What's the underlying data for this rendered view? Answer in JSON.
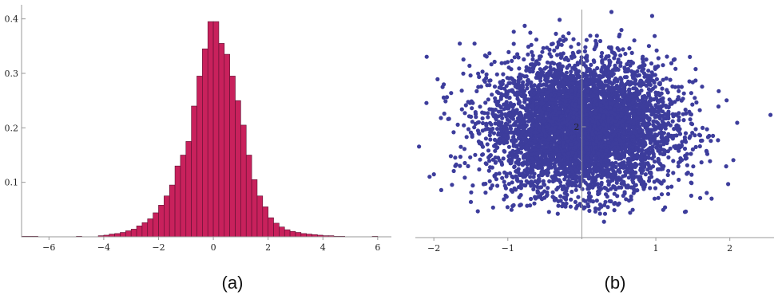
{
  "captions": {
    "a": "(a)",
    "b": "(b)"
  },
  "colors": {
    "bar_fill": "#c8215c",
    "bar_stroke": "#5a1030",
    "points": "#3d3d9c",
    "axis": "#999999"
  },
  "chart_data": [
    {
      "id": "a",
      "type": "bar",
      "title": "",
      "xlabel": "",
      "ylabel": "",
      "xlim": [
        -7,
        6.5
      ],
      "ylim": [
        0,
        0.42
      ],
      "bin_width": 0.2,
      "x_ticks": [
        -6,
        -4,
        -2,
        0,
        2,
        4,
        6
      ],
      "x_tick_labels": [
        "−6",
        "−4",
        "−2",
        "0",
        "2",
        "4",
        "6"
      ],
      "y_ticks": [
        0.1,
        0.2,
        0.3,
        0.4
      ],
      "y_tick_labels": [
        "0.1",
        "0.2",
        "0.3",
        "0.4"
      ],
      "bins": [
        {
          "x0": -7.0,
          "v": 0.001
        },
        {
          "x0": -6.8,
          "v": 0.001
        },
        {
          "x0": -6.6,
          "v": 0.001
        },
        {
          "x0": -5.0,
          "v": 0.001
        },
        {
          "x0": -4.2,
          "v": 0.002
        },
        {
          "x0": -4.0,
          "v": 0.003
        },
        {
          "x0": -3.8,
          "v": 0.005
        },
        {
          "x0": -3.6,
          "v": 0.006
        },
        {
          "x0": -3.4,
          "v": 0.008
        },
        {
          "x0": -3.2,
          "v": 0.011
        },
        {
          "x0": -3.0,
          "v": 0.014
        },
        {
          "x0": -2.8,
          "v": 0.02
        },
        {
          "x0": -2.6,
          "v": 0.026
        },
        {
          "x0": -2.4,
          "v": 0.033
        },
        {
          "x0": -2.2,
          "v": 0.044
        },
        {
          "x0": -2.0,
          "v": 0.058
        },
        {
          "x0": -1.8,
          "v": 0.075
        },
        {
          "x0": -1.6,
          "v": 0.095
        },
        {
          "x0": -1.4,
          "v": 0.13
        },
        {
          "x0": -1.2,
          "v": 0.15
        },
        {
          "x0": -1.0,
          "v": 0.175
        },
        {
          "x0": -0.8,
          "v": 0.24
        },
        {
          "x0": -0.6,
          "v": 0.295
        },
        {
          "x0": -0.4,
          "v": 0.345
        },
        {
          "x0": -0.2,
          "v": 0.395
        },
        {
          "x0": 0.0,
          "v": 0.395
        },
        {
          "x0": 0.2,
          "v": 0.355
        },
        {
          "x0": 0.4,
          "v": 0.335
        },
        {
          "x0": 0.6,
          "v": 0.295
        },
        {
          "x0": 0.8,
          "v": 0.25
        },
        {
          "x0": 1.0,
          "v": 0.205
        },
        {
          "x0": 1.2,
          "v": 0.15
        },
        {
          "x0": 1.4,
          "v": 0.105
        },
        {
          "x0": 1.6,
          "v": 0.075
        },
        {
          "x0": 1.8,
          "v": 0.055
        },
        {
          "x0": 2.0,
          "v": 0.035
        },
        {
          "x0": 2.2,
          "v": 0.025
        },
        {
          "x0": 2.4,
          "v": 0.018
        },
        {
          "x0": 2.6,
          "v": 0.013
        },
        {
          "x0": 2.8,
          "v": 0.01
        },
        {
          "x0": 3.0,
          "v": 0.008
        },
        {
          "x0": 3.2,
          "v": 0.006
        },
        {
          "x0": 3.4,
          "v": 0.005
        },
        {
          "x0": 3.6,
          "v": 0.004
        },
        {
          "x0": 3.8,
          "v": 0.003
        },
        {
          "x0": 4.0,
          "v": 0.002
        },
        {
          "x0": 4.2,
          "v": 0.002
        },
        {
          "x0": 4.4,
          "v": 0.001
        },
        {
          "x0": 4.6,
          "v": 0.001
        },
        {
          "x0": 5.8,
          "v": 0.001
        }
      ]
    },
    {
      "id": "b",
      "type": "scatter",
      "title": "",
      "xlabel": "",
      "ylabel": "",
      "xlim": [
        -2.25,
        2.5
      ],
      "ylim": [
        0.6,
        3.45
      ],
      "x_ticks": [
        -2,
        -1,
        1,
        2
      ],
      "x_tick_labels": [
        "−2",
        "−1",
        "1",
        "2"
      ],
      "y_ticks": [
        2
      ],
      "y_tick_labels": [
        "2"
      ],
      "cloud": {
        "n_points": 5200,
        "center_x": 0.0,
        "center_y": 2.0,
        "sd_x": 0.62,
        "sd_y": 0.42
      },
      "outliers": [
        [
          -2.3,
          2.0
        ],
        [
          -2.2,
          1.75
        ],
        [
          -2.1,
          2.3
        ],
        [
          -2.0,
          1.4
        ],
        [
          -1.95,
          2.6
        ],
        [
          -1.9,
          1.2
        ],
        [
          -1.6,
          2.85
        ],
        [
          -1.5,
          1.05
        ],
        [
          -1.65,
          3.05
        ],
        [
          -1.45,
          3.05
        ],
        [
          -0.55,
          3.55
        ],
        [
          0.85,
          3.58
        ],
        [
          0.95,
          3.4
        ],
        [
          -0.3,
          3.35
        ],
        [
          0.4,
          3.45
        ],
        [
          1.85,
          2.45
        ],
        [
          2.1,
          2.05
        ],
        [
          2.55,
          2.15
        ],
        [
          1.95,
          1.5
        ],
        [
          1.6,
          1.1
        ],
        [
          -0.95,
          0.95
        ],
        [
          1.1,
          0.95
        ],
        [
          -1.2,
          0.98
        ],
        [
          0.3,
          0.8
        ]
      ]
    }
  ]
}
